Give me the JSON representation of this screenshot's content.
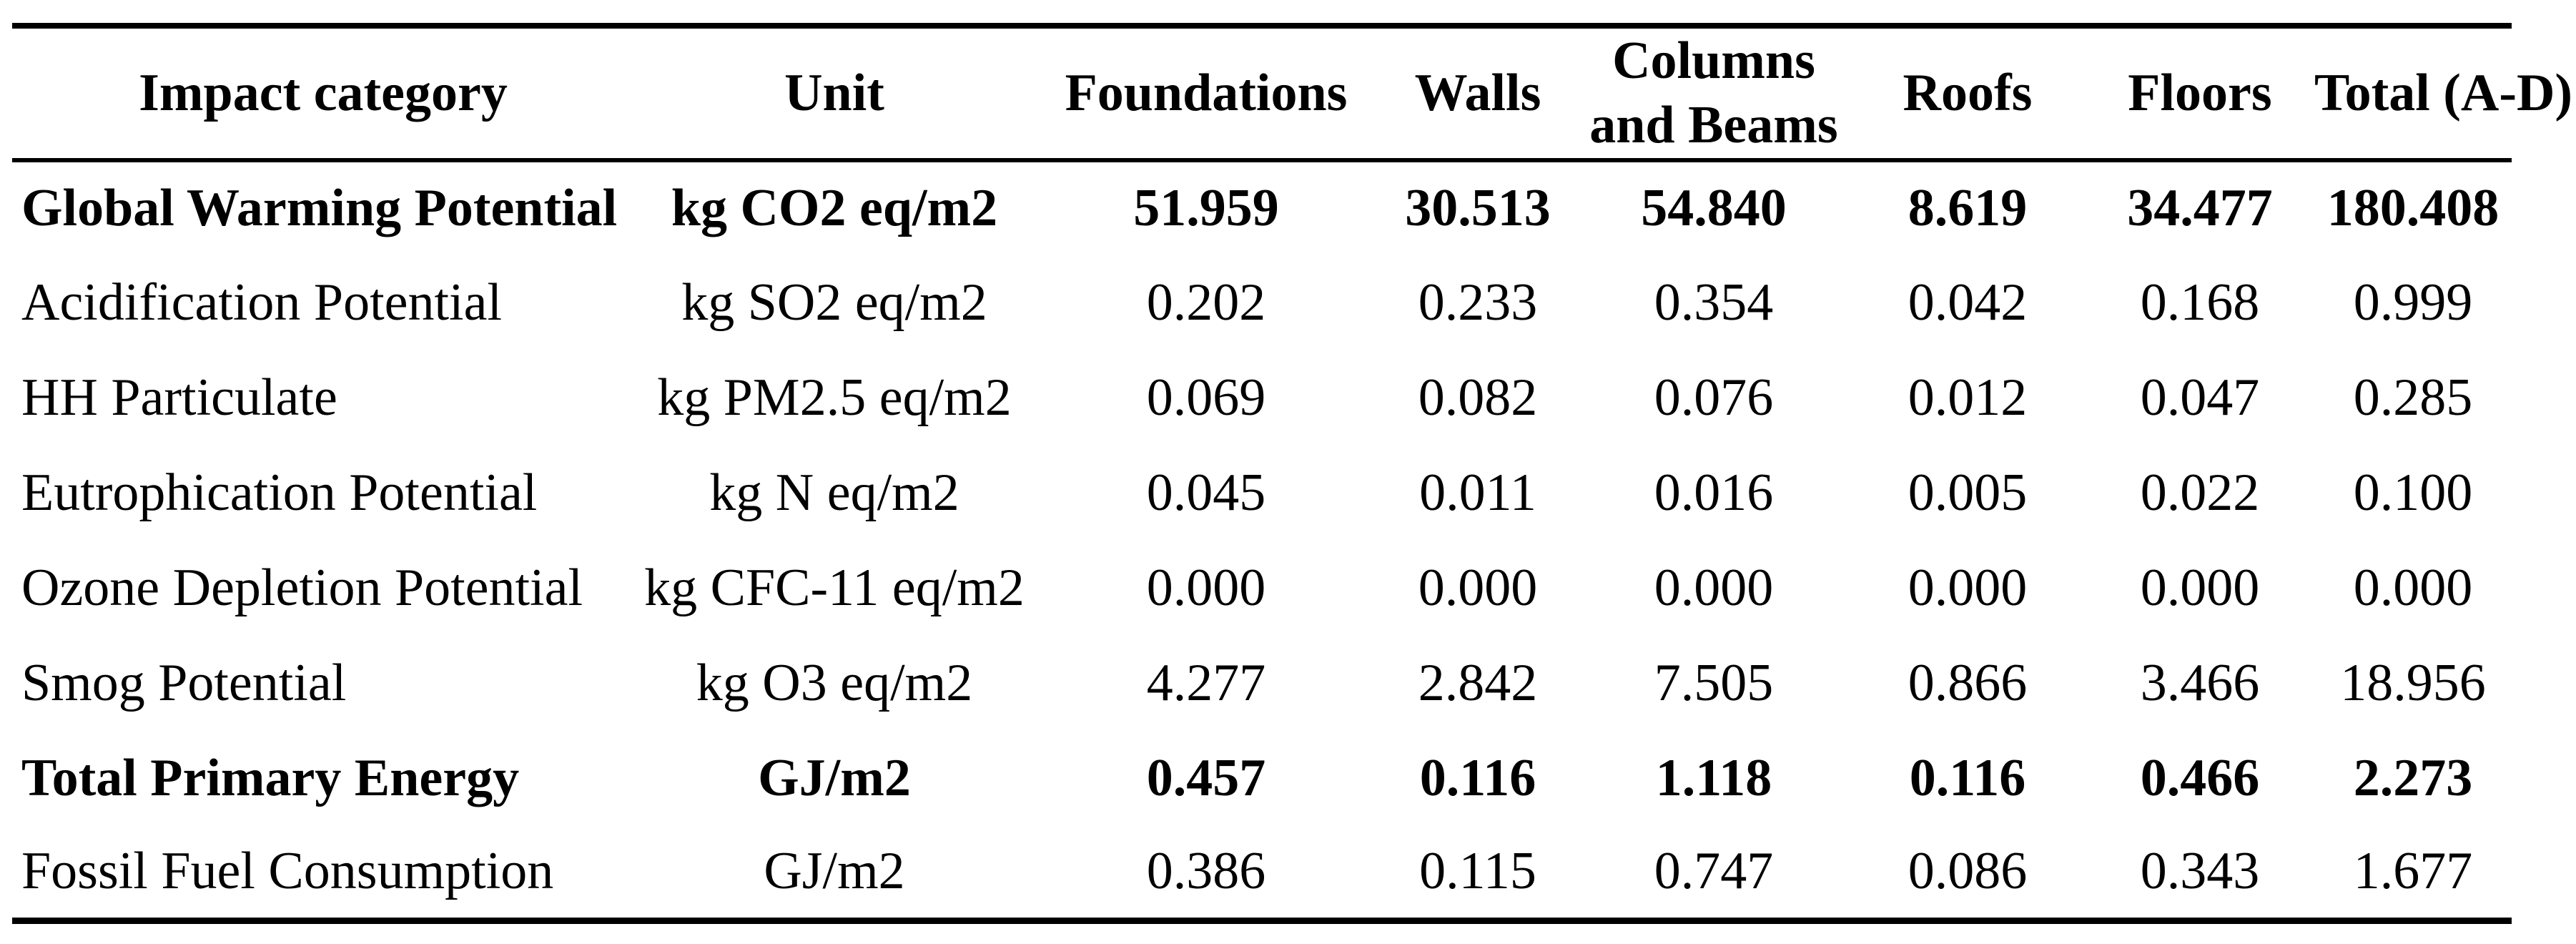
{
  "table": {
    "columns": [
      "Impact category",
      "Unit",
      "Foundations",
      "Walls",
      "Columns\nand Beams",
      "Roofs",
      "Floors",
      "Total (A-D)"
    ],
    "rows": [
      {
        "bold": true,
        "cells": [
          "Global Warming Potential",
          "kg CO2 eq/m2",
          "51.959",
          "30.513",
          "54.840",
          "8.619",
          "34.477",
          "180.408"
        ]
      },
      {
        "bold": false,
        "cells": [
          "Acidification Potential",
          "kg SO2 eq/m2",
          "0.202",
          "0.233",
          "0.354",
          "0.042",
          "0.168",
          "0.999"
        ]
      },
      {
        "bold": false,
        "cells": [
          "HH Particulate",
          "kg PM2.5 eq/m2",
          "0.069",
          "0.082",
          "0.076",
          "0.012",
          "0.047",
          "0.285"
        ]
      },
      {
        "bold": false,
        "cells": [
          "Eutrophication Potential",
          "kg N eq/m2",
          "0.045",
          "0.011",
          "0.016",
          "0.005",
          "0.022",
          "0.100"
        ]
      },
      {
        "bold": false,
        "cells": [
          "Ozone Depletion Potential",
          "kg CFC-11 eq/m2",
          "0.000",
          "0.000",
          "0.000",
          "0.000",
          "0.000",
          "0.000"
        ]
      },
      {
        "bold": false,
        "cells": [
          "Smog Potential",
          "kg O3 eq/m2",
          "4.277",
          "2.842",
          "7.505",
          "0.866",
          "3.466",
          "18.956"
        ]
      },
      {
        "bold": true,
        "cells": [
          "Total Primary Energy",
          "GJ/m2",
          "0.457",
          "0.116",
          "1.118",
          "0.116",
          "0.466",
          "2.273"
        ]
      },
      {
        "bold": false,
        "cells": [
          "Fossil Fuel Consumption",
          "GJ/m2",
          "0.386",
          "0.115",
          "0.747",
          "0.086",
          "0.343",
          "1.677"
        ]
      }
    ]
  }
}
